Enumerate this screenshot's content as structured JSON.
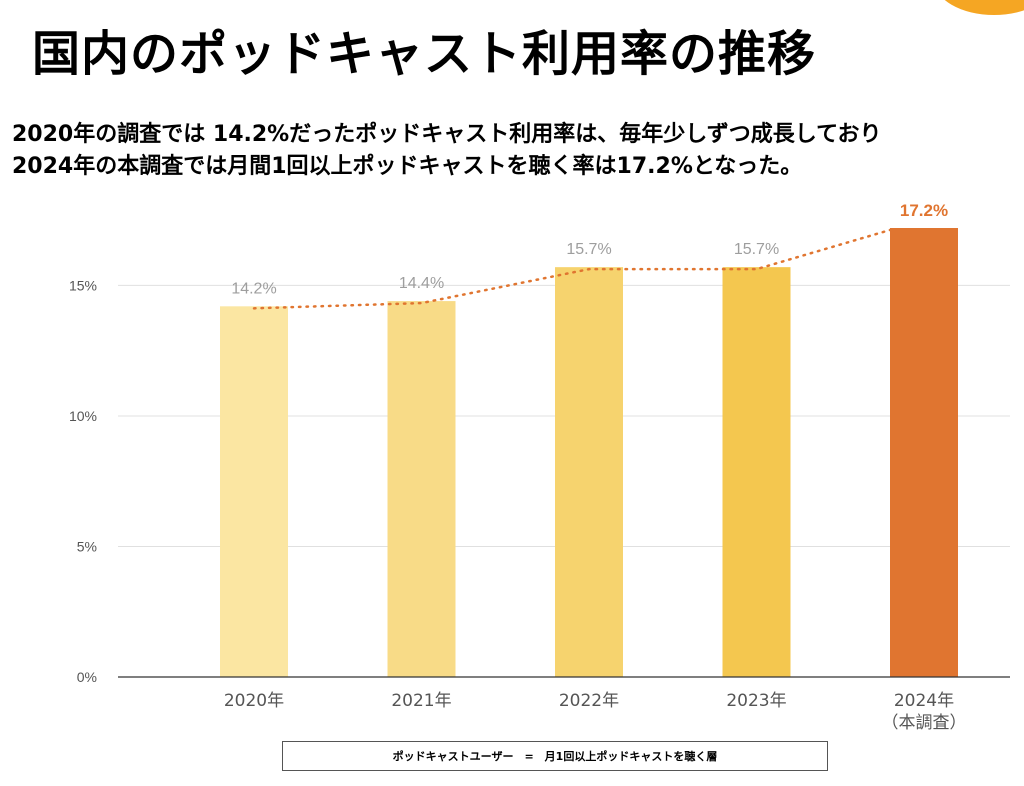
{
  "header": {
    "title": "国内のポッドキャスト利用率の推移",
    "subtitle_line1": "2020年の調査では 14.2%だったポッドキャスト利用率は、毎年少しずつ成長しており",
    "subtitle_line2": "2024年の本調査では月間1回以上ポッドキャストを聴く率は17.2%となった。"
  },
  "footnote": "ポッドキャストユーザー　=　月1回以上ポッドキャストを聴く層",
  "colors": {
    "accent": "#E07530",
    "corner": "#F5A623",
    "bars": [
      "#FBE6A2",
      "#F8DB87",
      "#F6D36E",
      "#F4C74F",
      "#E07530"
    ],
    "trend": "#E07530",
    "value_label": "#9E9E9E",
    "grid": "#E0E0E0"
  },
  "chart_data": {
    "type": "bar",
    "categories": [
      "2020年",
      "2021年",
      "2022年",
      "2023年",
      "2024年\n（本調査）"
    ],
    "values": [
      14.2,
      14.4,
      15.7,
      15.7,
      17.2
    ],
    "value_labels": [
      "14.2%",
      "14.4%",
      "15.7%",
      "15.7%",
      "17.2%"
    ],
    "highlight_index": 4,
    "ylim": [
      0,
      17.2
    ],
    "yticks": [
      0,
      5,
      10,
      15
    ],
    "ytick_labels": [
      "0%",
      "5%",
      "10%",
      "15%"
    ],
    "grid": true,
    "trend_line": "dotted",
    "xlabel": "",
    "ylabel": ""
  }
}
